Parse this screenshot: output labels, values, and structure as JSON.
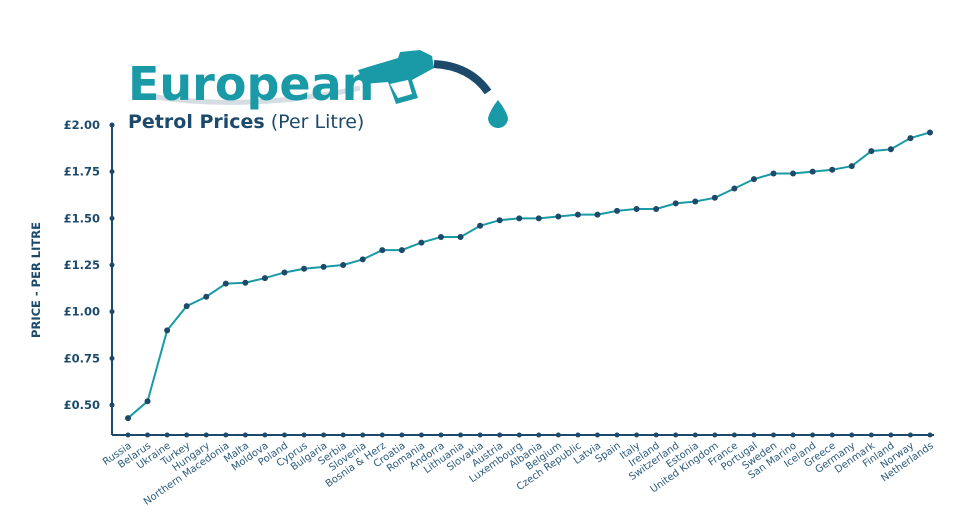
{
  "chart_data": {
    "type": "line",
    "title": "European",
    "subtitle_bold": "Petrol Prices",
    "subtitle_rest": "(Per Litre)",
    "xlabel": "",
    "ylabel": "PRICE - PER LITRE",
    "ylim": [
      0.34,
      2.0
    ],
    "yticks": [
      0.5,
      0.75,
      1.0,
      1.25,
      1.5,
      1.75,
      2.0
    ],
    "ytick_labels": [
      "£0.50",
      "£0.75",
      "£1.00",
      "£1.25",
      "£1.50",
      "£1.75",
      "£2.00"
    ],
    "grid": false,
    "categories": [
      "Russia",
      "Belarus",
      "Ukraine",
      "Turkey",
      "Hungary",
      "Northern Macedonia",
      "Malta",
      "Moldova",
      "Poland",
      "Cyprus",
      "Bulgaria",
      "Serbia",
      "Slovenia",
      "Bosnia & Herz",
      "Croatia",
      "Romania",
      "Andorra",
      "Lithuania",
      "Slovakia",
      "Austria",
      "Luxembourg",
      "Albania",
      "Belgium",
      "Czech Republic",
      "Latvia",
      "Spain",
      "Italy",
      "Ireland",
      "Switzerland",
      "Estonia",
      "United Kingdom",
      "France",
      "Portugal",
      "Sweden",
      "San Marino",
      "Iceland",
      "Greece",
      "Germany",
      "Denmark",
      "Finland",
      "Norway",
      "Netherlands"
    ],
    "values": [
      0.43,
      0.52,
      0.9,
      1.03,
      1.08,
      1.15,
      1.155,
      1.18,
      1.21,
      1.23,
      1.24,
      1.25,
      1.28,
      1.33,
      1.33,
      1.37,
      1.4,
      1.4,
      1.46,
      1.49,
      1.5,
      1.5,
      1.51,
      1.52,
      1.52,
      1.54,
      1.55,
      1.55,
      1.58,
      1.59,
      1.61,
      1.66,
      1.71,
      1.74,
      1.74,
      1.75,
      1.76,
      1.78,
      1.86,
      1.87,
      1.93,
      1.96
    ],
    "colors": {
      "line": "#1a9aa6",
      "axis": "#1d4a6b",
      "title": "#1a9aa6",
      "subtitle": "#1d4a6b"
    }
  }
}
